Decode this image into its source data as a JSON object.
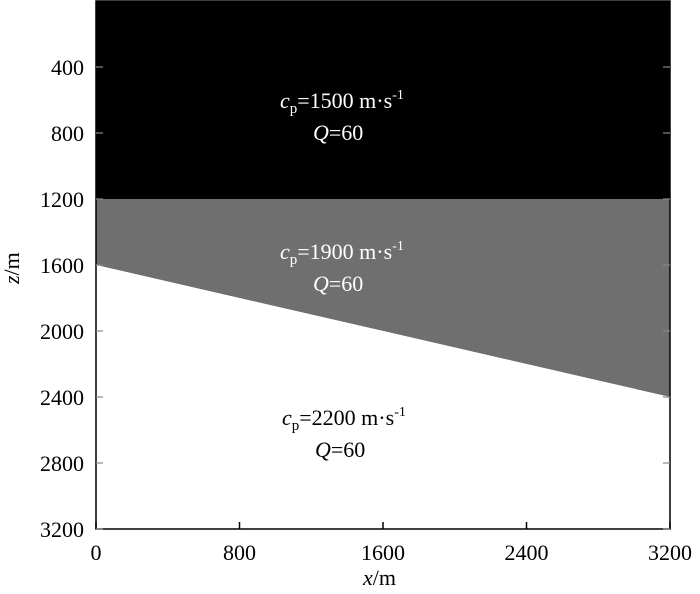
{
  "axes": {
    "x_label_var": "x",
    "x_label_unit": "/m",
    "y_label_var": "z",
    "y_label_unit": "/m",
    "x_ticks": [
      "0",
      "800",
      "1600",
      "2400",
      "3200"
    ],
    "y_ticks": [
      "400",
      "800",
      "1200",
      "1600",
      "2000",
      "2400",
      "2800",
      "3200"
    ],
    "x_range": [
      0,
      3200
    ],
    "z_range": [
      0,
      3200
    ]
  },
  "model": {
    "interface1_z": 1200,
    "interface2_left_z": 1600,
    "interface2_right_z": 2400,
    "layers": [
      {
        "color": "#000000",
        "text_color": "#ffffff",
        "cp_sym": "c",
        "cp_sub": "p",
        "cp_value": "=1500 m·s",
        "cp_exp": "-1",
        "q_sym": "Q",
        "q_value": "=60"
      },
      {
        "color": "#6f6f6f",
        "text_color": "#ffffff",
        "cp_sym": "c",
        "cp_sub": "p",
        "cp_value": "=1900 m·s",
        "cp_exp": "-1",
        "q_sym": "Q",
        "q_value": "=60"
      },
      {
        "color": "#ffffff",
        "text_color": "#000000",
        "cp_sym": "c",
        "cp_sub": "p",
        "cp_value": "=2200 m·s",
        "cp_exp": "-1",
        "q_sym": "Q",
        "q_value": "=60"
      }
    ]
  }
}
